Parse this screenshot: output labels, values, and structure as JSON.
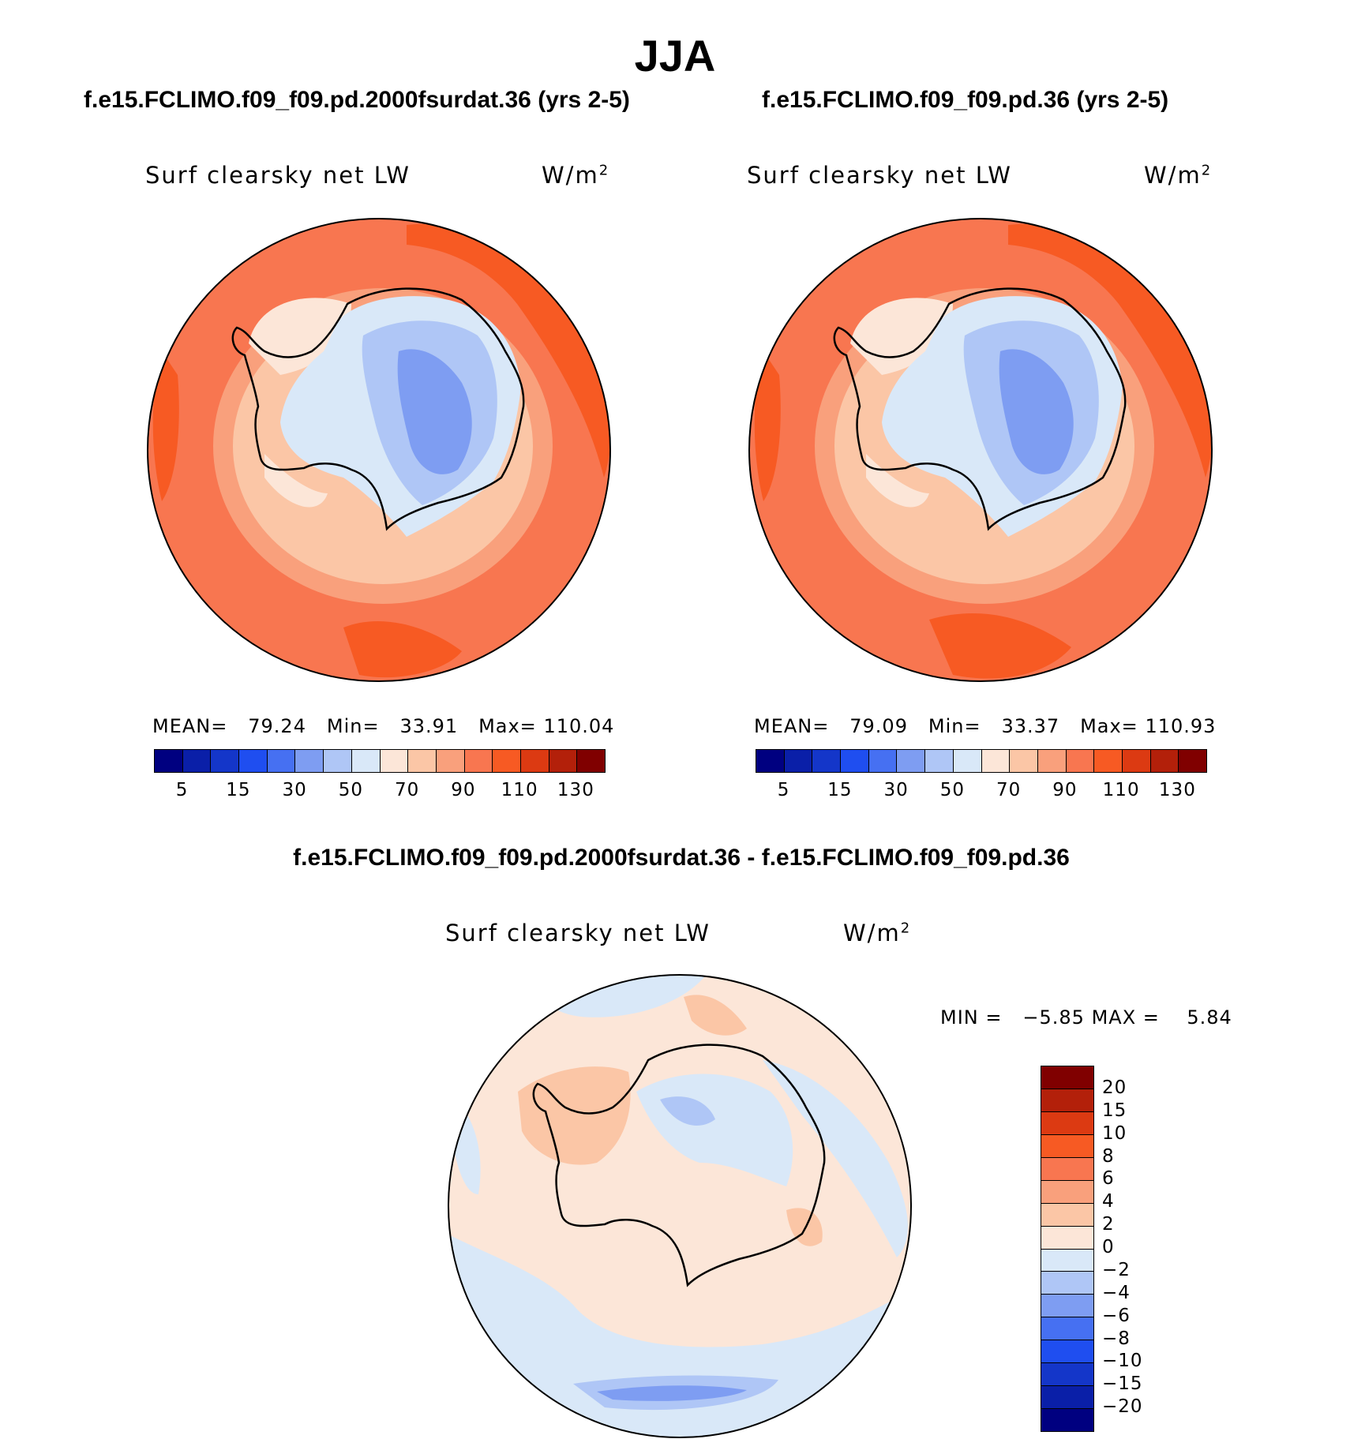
{
  "page_title": "JJA",
  "colors": {
    "seq": [
      "#000080",
      "#0a1fa8",
      "#1436c9",
      "#1f4ef0",
      "#4670f2",
      "#7e9df2",
      "#afc6f6",
      "#d9e8f8",
      "#fce6d8",
      "#fbc6a6",
      "#f9a07c",
      "#f87650",
      "#f75a23",
      "#dc3a12",
      "#b3200a",
      "#800000"
    ],
    "div": [
      "#800000",
      "#b3200a",
      "#dc3a12",
      "#f75a23",
      "#f87650",
      "#f9a07c",
      "#fbc6a6",
      "#fce6d8",
      "#d9e8f8",
      "#afc6f6",
      "#7e9df2",
      "#4670f2",
      "#1f4ef0",
      "#1436c9",
      "#0a1fa8",
      "#000080"
    ]
  },
  "chart_data": [
    {
      "type": "polar-contour",
      "title": "f.e15.FCLIMO.f09_f09.pd.2000fsurdat.36 (yrs 2-5)",
      "variable": "Surf clearsky net LW",
      "units_base": "W/m",
      "units_exp": "2",
      "stats": {
        "mean_label": "MEAN=",
        "mean": "79.24",
        "min_label": "Min=",
        "min": "33.91",
        "max_label": "Max=",
        "max": "110.04"
      },
      "colorbar_ticks": [
        "5",
        "15",
        "30",
        "50",
        "70",
        "90",
        "110",
        "130"
      ],
      "colorbar_levels": [
        5,
        10,
        15,
        20,
        30,
        40,
        50,
        60,
        70,
        80,
        90,
        100,
        110,
        120,
        130
      ]
    },
    {
      "type": "polar-contour",
      "title": "f.e15.FCLIMO.f09_f09.pd.36 (yrs 2-5)",
      "variable": "Surf clearsky net LW",
      "units_base": "W/m",
      "units_exp": "2",
      "stats": {
        "mean_label": "MEAN=",
        "mean": "79.09",
        "min_label": "Min=",
        "min": "33.37",
        "max_label": "Max=",
        "max": "110.93"
      },
      "colorbar_ticks": [
        "5",
        "15",
        "30",
        "50",
        "70",
        "90",
        "110",
        "130"
      ],
      "colorbar_levels": [
        5,
        10,
        15,
        20,
        30,
        40,
        50,
        60,
        70,
        80,
        90,
        100,
        110,
        120,
        130
      ]
    },
    {
      "type": "polar-contour-difference",
      "title": "f.e15.FCLIMO.f09_f09.pd.2000fsurdat.36 - f.e15.FCLIMO.f09_f09.pd.36",
      "variable": "Surf clearsky net LW",
      "units_base": "W/m",
      "units_exp": "2",
      "stats": {
        "min_label": "MIN =",
        "min": "−5.85",
        "max_label": "MAX =",
        "max": "5.84"
      },
      "colorbar_ticks": [
        "20",
        "15",
        "10",
        "8",
        "6",
        "4",
        "2",
        "0",
        "−2",
        "−4",
        "−6",
        "−8",
        "−10",
        "−15",
        "−20"
      ],
      "colorbar_levels": [
        20,
        15,
        10,
        8,
        6,
        4,
        2,
        0,
        -2,
        -4,
        -6,
        -8,
        -10,
        -15,
        -20
      ]
    }
  ]
}
